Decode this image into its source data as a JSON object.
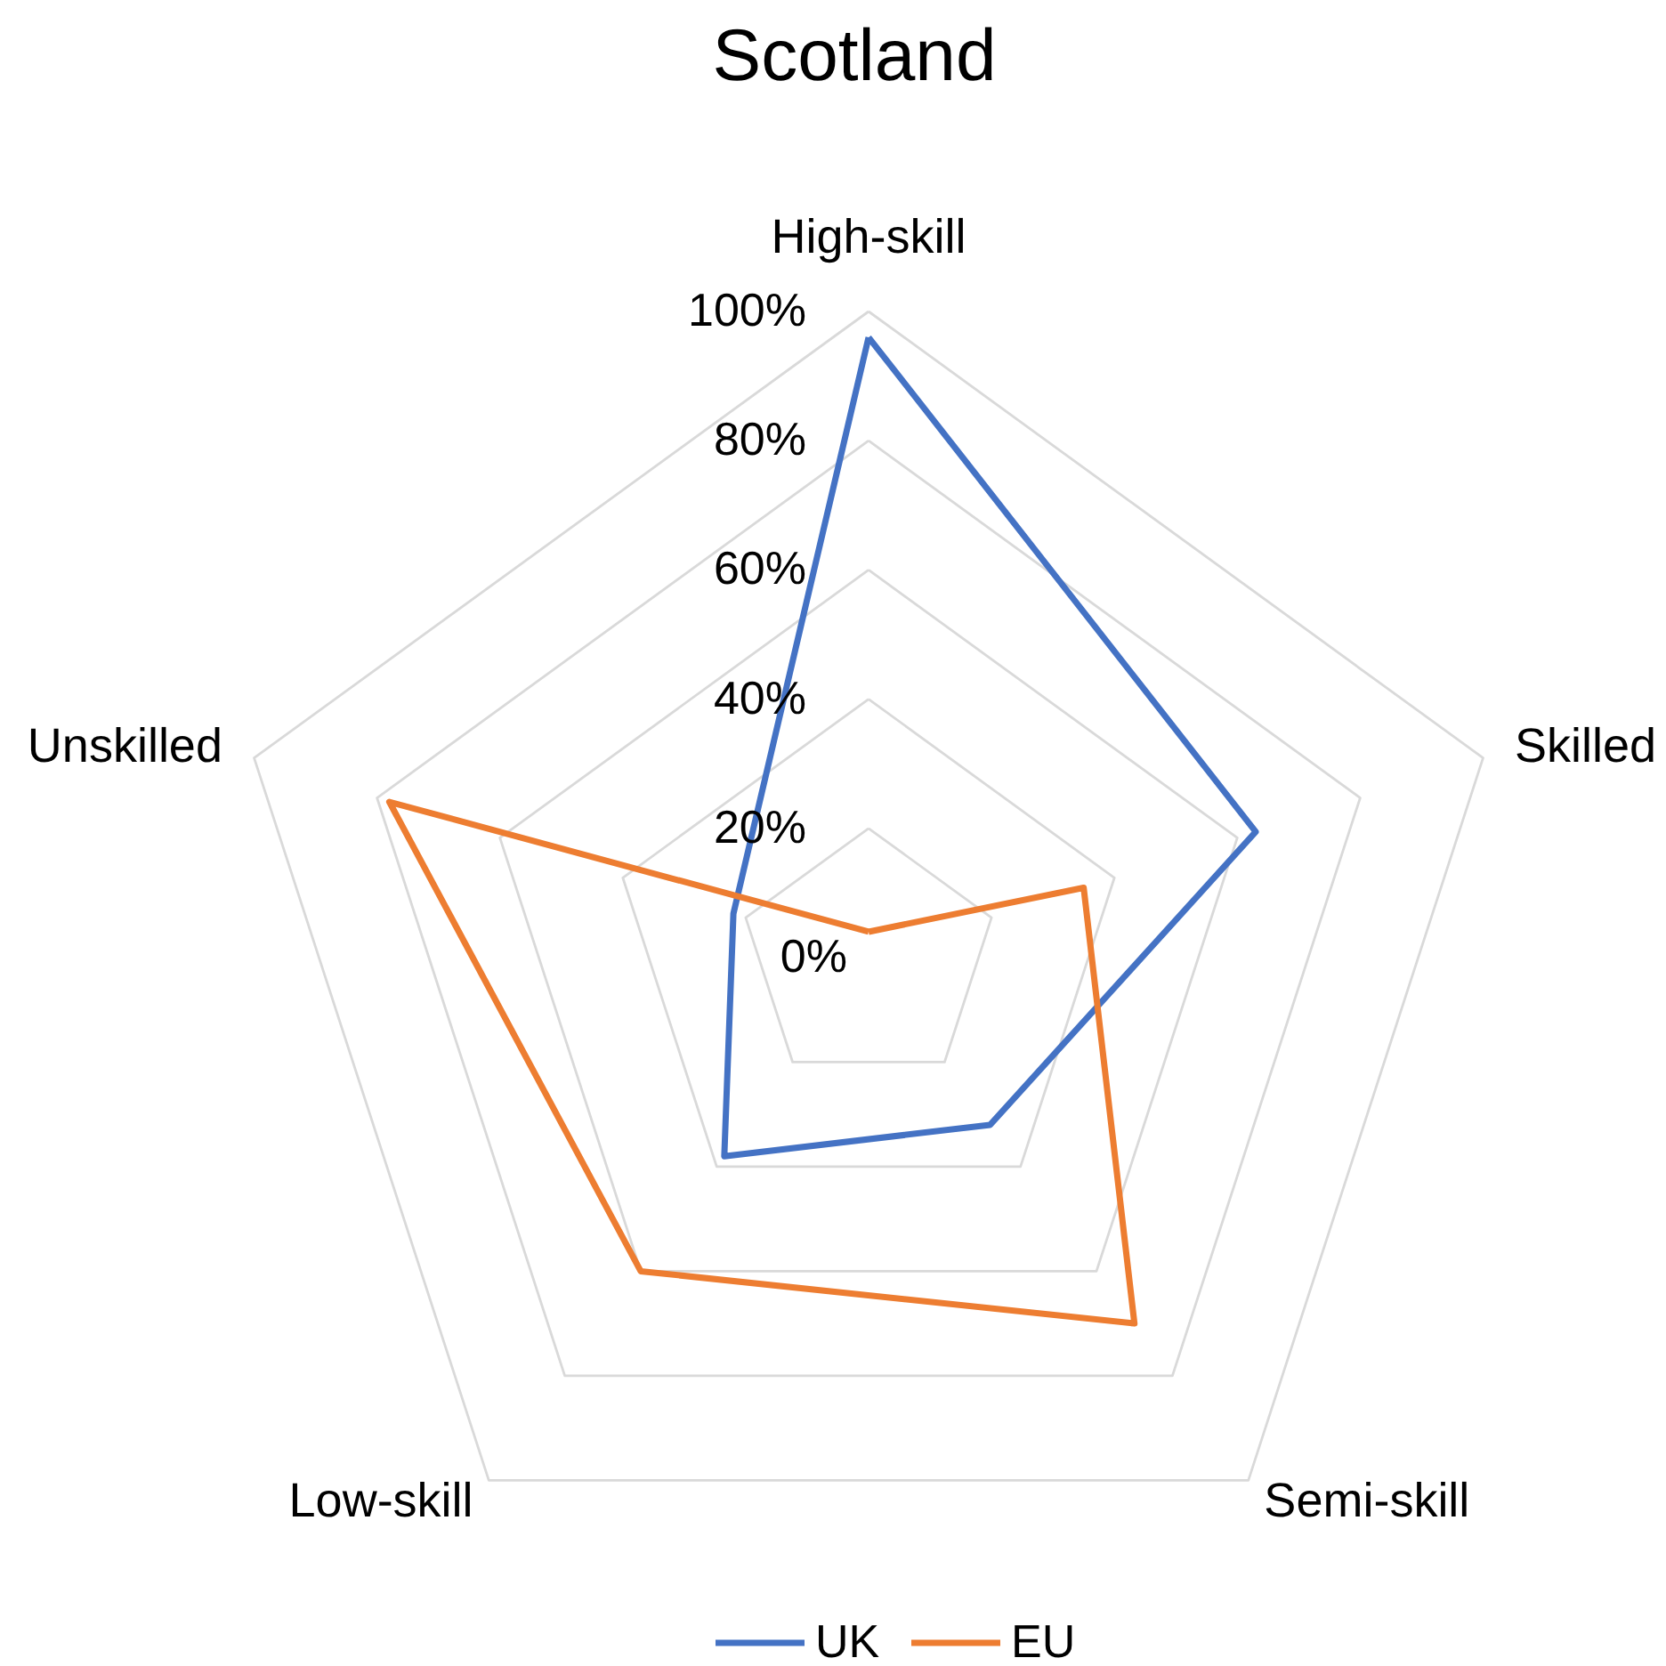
{
  "chart_data": {
    "type": "radar",
    "title": "Scotland",
    "categories": [
      "High-skill",
      "Skilled",
      "Semi-skill",
      "Low-skill",
      "Unskilled"
    ],
    "series": [
      {
        "name": "UK",
        "color": "#4472c4",
        "values": [
          96,
          63,
          32,
          38,
          22
        ]
      },
      {
        "name": "EU",
        "color": "#ed7d31",
        "values": [
          4,
          35,
          70,
          60,
          78
        ]
      }
    ],
    "ylim": [
      0,
      100
    ],
    "yticks": [
      {
        "value": 0,
        "label": "0%"
      },
      {
        "value": 20,
        "label": "20%"
      },
      {
        "value": 40,
        "label": "40%"
      },
      {
        "value": 60,
        "label": "60%"
      },
      {
        "value": 80,
        "label": "80%"
      },
      {
        "value": 100,
        "label": "100%"
      }
    ],
    "grid": true,
    "legend": "bottom"
  }
}
